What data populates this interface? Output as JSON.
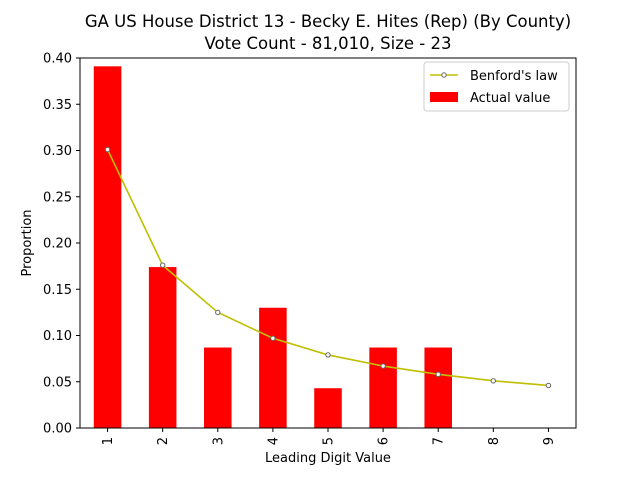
{
  "chart_data": {
    "type": "bar",
    "title": "GA US House District 13 - Becky E. Hites (Rep) (By County)",
    "subtitle": "Vote Count - 81,010, Size - 23",
    "xlabel": "Leading Digit Value",
    "ylabel": "Proportion",
    "categories": [
      "1",
      "2",
      "3",
      "4",
      "5",
      "6",
      "7",
      "8",
      "9"
    ],
    "ylim": [
      0,
      0.4
    ],
    "yticks": [
      "0.00",
      "0.05",
      "0.10",
      "0.15",
      "0.20",
      "0.25",
      "0.30",
      "0.35",
      "0.40"
    ],
    "series": [
      {
        "name": "Actual value",
        "kind": "bar",
        "color": "#ff0000",
        "values": [
          0.391,
          0.174,
          0.087,
          0.13,
          0.043,
          0.087,
          0.087,
          0.0,
          0.0
        ]
      },
      {
        "name": "Benford's law",
        "kind": "line",
        "color": "#bfbf00",
        "values": [
          0.301,
          0.176,
          0.125,
          0.097,
          0.079,
          0.067,
          0.058,
          0.051,
          0.046
        ]
      }
    ],
    "legend": {
      "position": "top-right",
      "entries": [
        "Benford's law",
        "Actual value"
      ]
    }
  }
}
